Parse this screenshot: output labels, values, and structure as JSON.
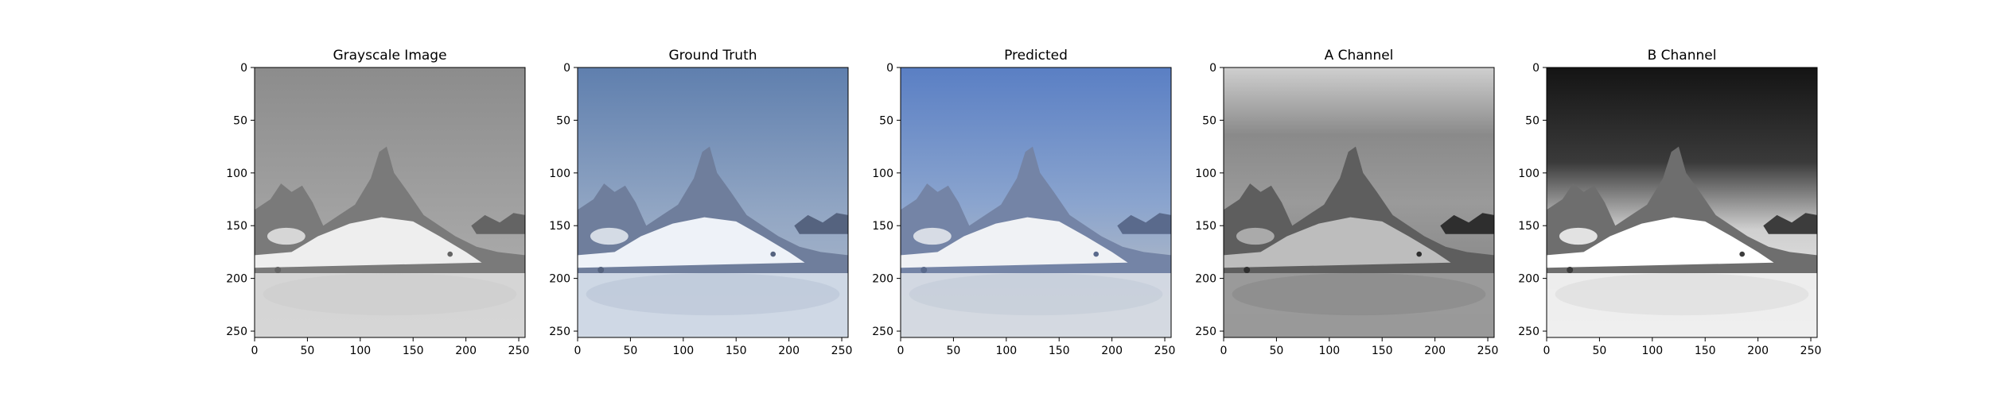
{
  "panels": [
    {
      "title": "Grayscale Image",
      "palette": "gray"
    },
    {
      "title": "Ground Truth",
      "palette": "truth"
    },
    {
      "title": "Predicted",
      "palette": "pred"
    },
    {
      "title": "A Channel",
      "palette": "achan"
    },
    {
      "title": "B Channel",
      "palette": "bchan"
    }
  ],
  "axes": {
    "x_ticks": [
      "0",
      "50",
      "100",
      "150",
      "200",
      "250"
    ],
    "y_ticks": [
      "0",
      "50",
      "100",
      "150",
      "200",
      "250"
    ],
    "x_range": [
      0,
      256
    ],
    "y_range": [
      0,
      256
    ]
  }
}
